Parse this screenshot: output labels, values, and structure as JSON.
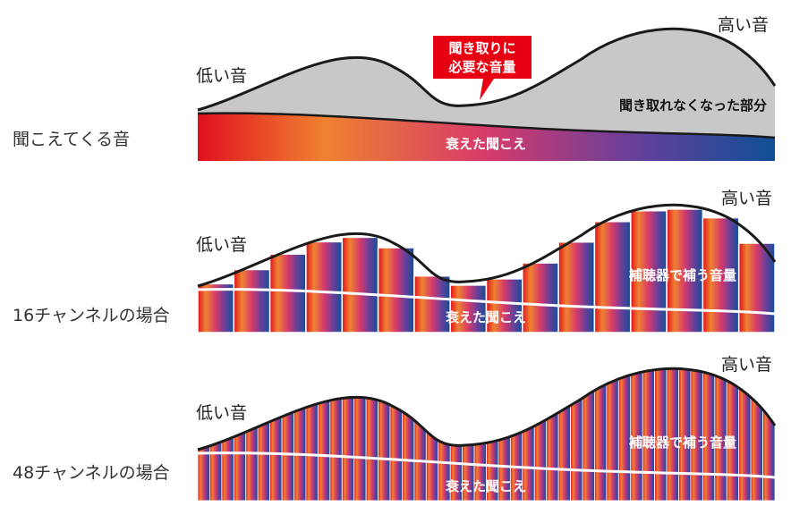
{
  "rows": [
    {
      "label": "聞こえてくる音",
      "low": "低い音",
      "high": "高い音",
      "base": "衰えた聞こえ",
      "overlay": "聞き取れなくなった部分",
      "callout": [
        "聞き取りに",
        "必要な音量"
      ]
    },
    {
      "label": "16チャンネルの場合",
      "low": "低い音",
      "high": "高い音",
      "base": "衰えた聞こえ",
      "overlay": "補聴器で補う音量",
      "channels": 16
    },
    {
      "label": "48チャンネルの場合",
      "low": "低い音",
      "high": "高い音",
      "base": "衰えた聞こえ",
      "overlay": "補聴器で補う音量",
      "channels": 48
    }
  ],
  "colors": {
    "gradient": [
      "#e0101e",
      "#ef8230",
      "#d63a6a",
      "#6a3f9a",
      "#0f4f96"
    ],
    "gray_area": "#c8c8c8",
    "callout": "#e60012",
    "curve": "#1a1a1a"
  }
}
